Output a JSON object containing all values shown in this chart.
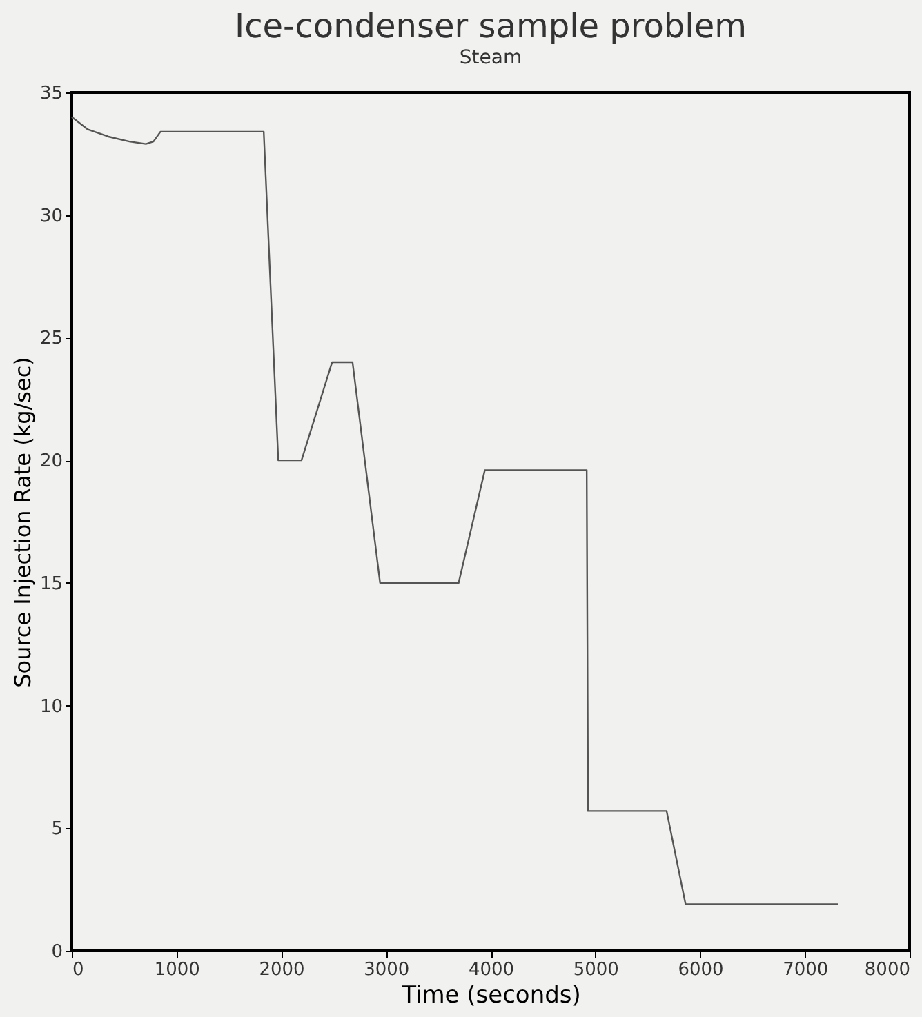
{
  "chart_data": {
    "type": "line",
    "title": "Ice-condenser sample problem",
    "subtitle": "Steam",
    "xlabel": "Time (seconds)",
    "ylabel": "Source Injection Rate (kg/sec)",
    "x": [
      0,
      150,
      350,
      550,
      708,
      780,
      847,
      1000,
      1833,
      1972,
      2194,
      2486,
      2681,
      2944,
      3694,
      3944,
      4917,
      4930,
      5680,
      5861,
      7319
    ],
    "series": [
      {
        "color": "#555555",
        "values": [
          34.0,
          33.5,
          33.2,
          33.0,
          32.9,
          33.0,
          33.4,
          33.4,
          33.4,
          20.0,
          20.0,
          24.0,
          24.0,
          15.0,
          15.0,
          19.6,
          19.6,
          5.7,
          5.7,
          1.9,
          1.9
        ]
      }
    ],
    "xlim": [
      0,
      8000
    ],
    "xticks": [
      0,
      1000,
      2000,
      3000,
      4000,
      5000,
      6000,
      7000,
      8000
    ],
    "ylim": [
      0,
      35
    ],
    "yticks": [
      0,
      5,
      10,
      15,
      20,
      25,
      30,
      35
    ],
    "grid": false,
    "marker": "none",
    "line_style": "solid"
  }
}
